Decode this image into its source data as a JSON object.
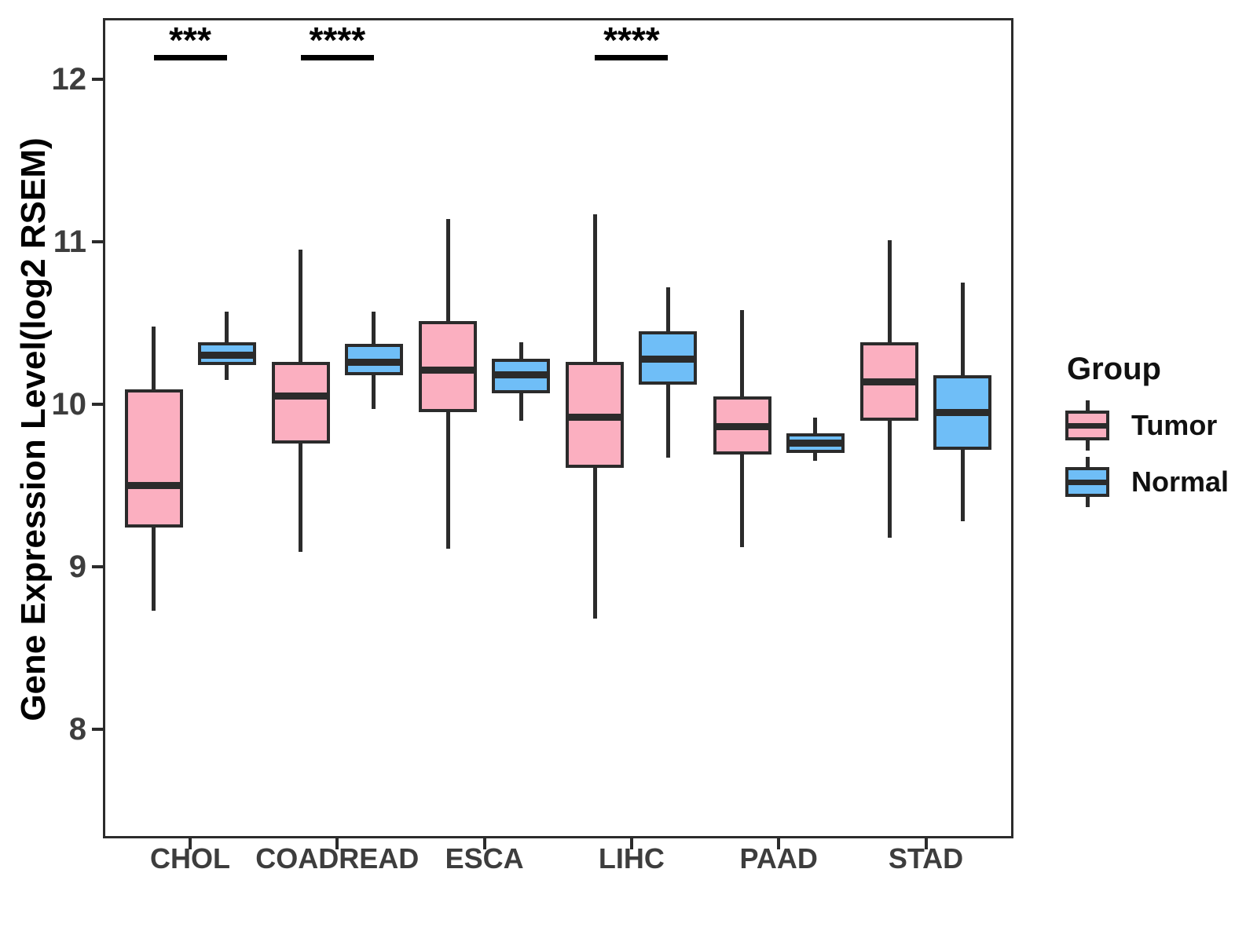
{
  "legend": {
    "title": "Group",
    "items": [
      {
        "label": "Tumor",
        "color": "#FBAFC0"
      },
      {
        "label": "Normal",
        "color": "#6FBEF7"
      }
    ]
  },
  "chart_data": {
    "type": "boxplot",
    "title": "",
    "xlabel": "",
    "ylabel": "Gene Expression Level(log2 RSEM)",
    "ylim": [
      7.33,
      12.38
    ],
    "yticks": [
      8,
      9,
      10,
      11,
      12
    ],
    "grid": false,
    "legend_position": "right",
    "stroke_color": "#2B2B2B",
    "categories": [
      "CHOL",
      "COADREAD",
      "ESCA",
      "LIHC",
      "PAAD",
      "STAD"
    ],
    "series": [
      {
        "name": "Tumor",
        "fill_color": "#FBAFC0",
        "boxes": [
          {
            "category": "CHOL",
            "min": 8.73,
            "q1": 9.24,
            "median": 9.5,
            "q3": 10.09,
            "max": 10.48
          },
          {
            "category": "COADREAD",
            "min": 9.09,
            "q1": 9.76,
            "median": 10.05,
            "q3": 10.26,
            "max": 10.95
          },
          {
            "category": "ESCA",
            "min": 9.11,
            "q1": 9.95,
            "median": 10.21,
            "q3": 10.51,
            "max": 11.14
          },
          {
            "category": "LIHC",
            "min": 8.68,
            "q1": 9.61,
            "median": 9.92,
            "q3": 10.26,
            "max": 11.17
          },
          {
            "category": "PAAD",
            "min": 9.12,
            "q1": 9.69,
            "median": 9.86,
            "q3": 10.05,
            "max": 10.58
          },
          {
            "category": "STAD",
            "min": 9.18,
            "q1": 9.9,
            "median": 10.14,
            "q3": 10.38,
            "max": 11.01
          }
        ]
      },
      {
        "name": "Normal",
        "fill_color": "#6FBEF7",
        "boxes": [
          {
            "category": "CHOL",
            "min": 10.15,
            "q1": 10.24,
            "median": 10.3,
            "q3": 10.38,
            "max": 10.57
          },
          {
            "category": "COADREAD",
            "min": 9.97,
            "q1": 10.18,
            "median": 10.26,
            "q3": 10.37,
            "max": 10.57
          },
          {
            "category": "ESCA",
            "min": 9.9,
            "q1": 10.07,
            "median": 10.18,
            "q3": 10.28,
            "max": 10.38
          },
          {
            "category": "LIHC",
            "min": 9.67,
            "q1": 10.12,
            "median": 10.28,
            "q3": 10.45,
            "max": 10.72
          },
          {
            "category": "PAAD",
            "min": 9.65,
            "q1": 9.7,
            "median": 9.76,
            "q3": 9.82,
            "max": 9.92
          },
          {
            "category": "STAD",
            "min": 9.28,
            "q1": 9.72,
            "median": 9.95,
            "q3": 10.18,
            "max": 10.75
          }
        ]
      }
    ],
    "significance_annotations": [
      {
        "category": "CHOL",
        "label": "***"
      },
      {
        "category": "COADREAD",
        "label": "****"
      },
      {
        "category": "LIHC",
        "label": "****"
      }
    ]
  }
}
